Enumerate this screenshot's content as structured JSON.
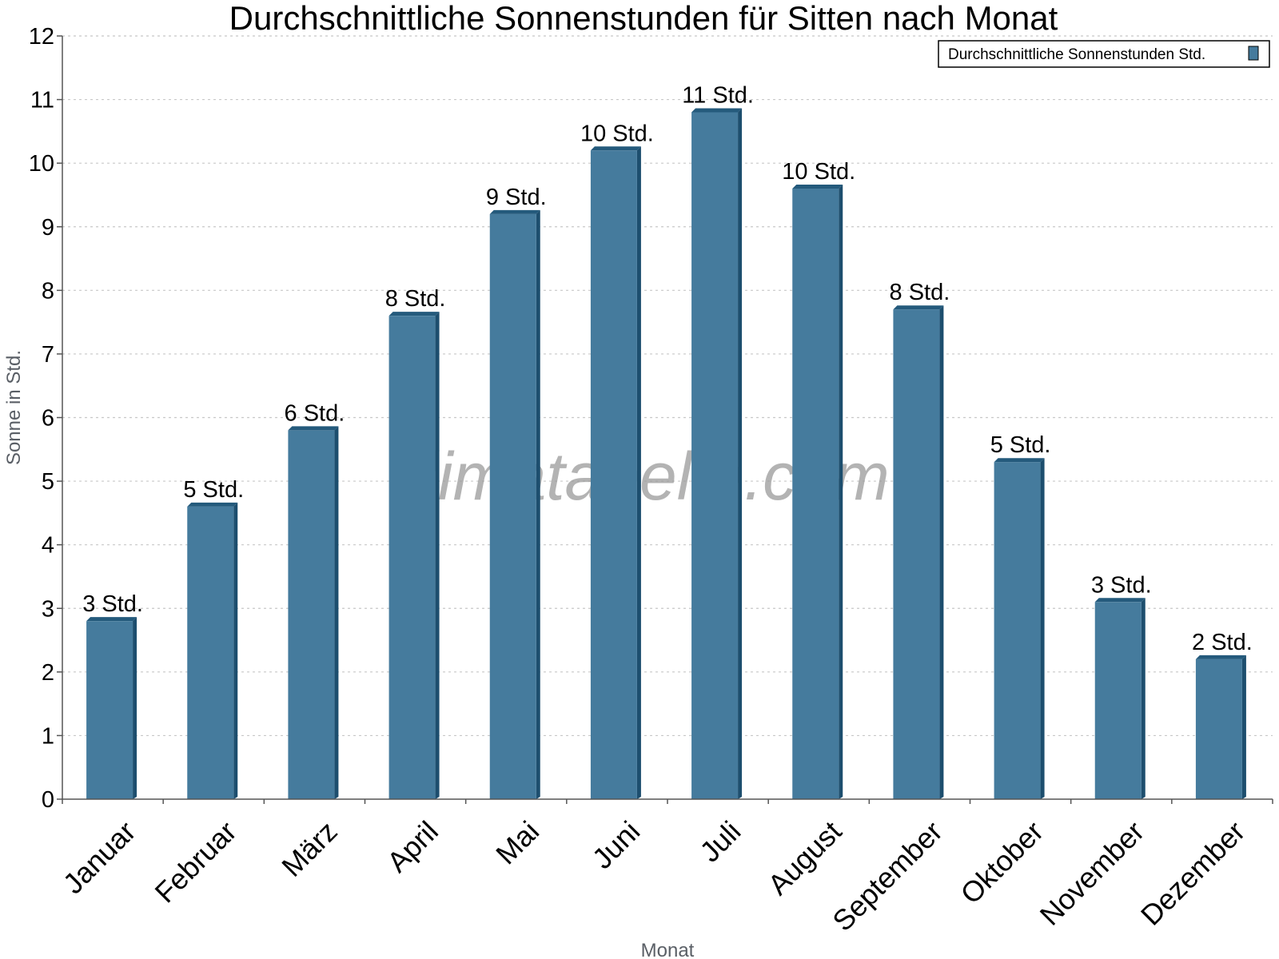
{
  "colors": {
    "bar_front": "#457b9d",
    "bar_side": "#1d4e6e",
    "bar_top": "#245a7c",
    "grid": "#c8c8c8",
    "axis": "#555555"
  },
  "watermark": "klimatabelle.com",
  "chart_data": {
    "type": "bar",
    "title": "Durchschnittliche Sonnenstunden für Sitten nach Monat",
    "xlabel": "Monat",
    "ylabel": "Sonne in Std.",
    "ylim": [
      0,
      12
    ],
    "yticks": [
      0,
      1,
      2,
      3,
      4,
      5,
      6,
      7,
      8,
      9,
      10,
      11,
      12
    ],
    "grid": true,
    "legend_position": "top-right",
    "categories": [
      "Januar",
      "Februar",
      "März",
      "April",
      "Mai",
      "Juni",
      "Juli",
      "August",
      "September",
      "Oktober",
      "November",
      "Dezember"
    ],
    "series": [
      {
        "name": "Durchschnittliche Sonnenstunden Std.",
        "values": [
          2.8,
          4.6,
          5.8,
          7.6,
          9.2,
          10.2,
          10.8,
          9.6,
          7.7,
          5.3,
          3.1,
          2.2
        ],
        "labels": [
          "3 Std.",
          "5 Std.",
          "6 Std.",
          "8 Std.",
          "9 Std.",
          "10 Std.",
          "11 Std.",
          "10 Std.",
          "8 Std.",
          "5 Std.",
          "3 Std.",
          "2 Std."
        ]
      }
    ]
  }
}
